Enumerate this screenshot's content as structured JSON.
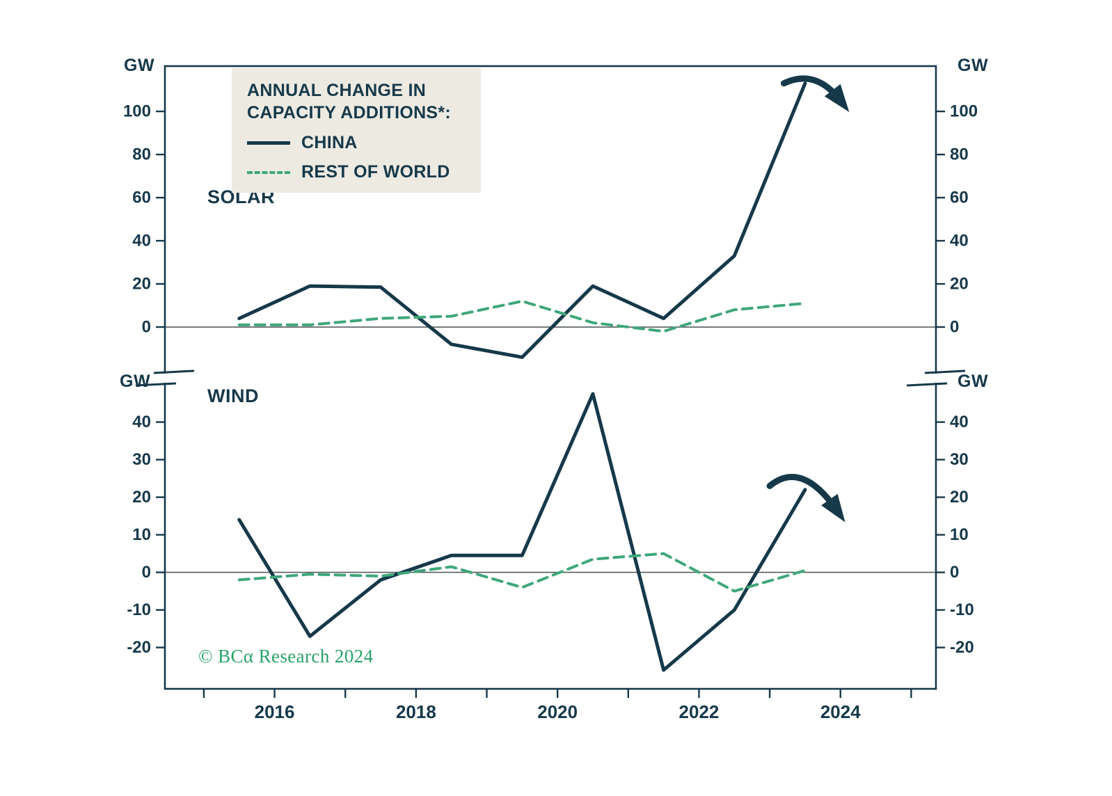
{
  "colors": {
    "background": "#ffffff",
    "ink": "#16394a",
    "china_line": "#16394a",
    "rest_of_world_line": "#3fa77a",
    "legend_background": "#edeae2",
    "copyright_green": "#2aa268",
    "zero_line": "#565b5e"
  },
  "legend": {
    "title_line1": "ANNUAL CHANGE IN",
    "title_line2": "CAPACITY ADDITIONS*:"
  },
  "axis": {
    "unit_label": "GW",
    "minor_tick_years": [
      2015,
      2016,
      2017,
      2018,
      2019,
      2020,
      2021,
      2022,
      2023,
      2024,
      2025
    ],
    "x_ticks": [
      {
        "year": 2016,
        "label": "2016"
      },
      {
        "year": 2018,
        "label": "2018"
      },
      {
        "year": 2020,
        "label": "2020"
      },
      {
        "year": 2022,
        "label": "2022"
      },
      {
        "year": 2024,
        "label": "2024"
      }
    ]
  },
  "footer": {
    "copyright": "© BCα Research 2024"
  },
  "chart_data": [
    {
      "type": "line",
      "title": "SOLAR",
      "xlabel": "",
      "ylabel": "GW",
      "xlim": [
        2014.45,
        2025.35
      ],
      "ylim": [
        -20,
        121
      ],
      "yticks": [
        0,
        20,
        40,
        60,
        80,
        100
      ],
      "x": [
        2015.5,
        2016.5,
        2017.5,
        2018.5,
        2019.5,
        2020.5,
        2021.5,
        2022.5,
        2023.5
      ],
      "series": [
        {
          "name": "CHINA",
          "style": "solid",
          "color": "#16394a",
          "values": [
            4,
            19,
            18.5,
            -8,
            -14,
            19,
            4,
            33,
            113
          ]
        },
        {
          "name": "REST OF WORLD",
          "style": "dashed",
          "color": "#3fa77a",
          "values": [
            1,
            1,
            4,
            5,
            12,
            2,
            -2,
            8,
            11
          ]
        }
      ],
      "annotations": [
        {
          "type": "arrow",
          "from": [
            2023.2,
            113
          ],
          "ctrl": [
            2023.65,
            120
          ],
          "to": [
            2024.0,
            105
          ]
        }
      ]
    },
    {
      "type": "line",
      "title": "WIND",
      "xlabel": "",
      "ylabel": "GW",
      "xlim": [
        2014.45,
        2025.35
      ],
      "ylim": [
        -31,
        49
      ],
      "yticks": [
        -20,
        -10,
        0,
        10,
        20,
        30,
        40
      ],
      "x": [
        2015.5,
        2016.5,
        2017.5,
        2018.5,
        2019.5,
        2020.5,
        2021.5,
        2022.5,
        2023.5
      ],
      "series": [
        {
          "name": "CHINA",
          "style": "solid",
          "color": "#16394a",
          "values": [
            14,
            -17,
            -2,
            4.5,
            4.5,
            47.5,
            -26,
            -10,
            22
          ]
        },
        {
          "name": "REST OF WORLD",
          "style": "dashed",
          "color": "#3fa77a",
          "values": [
            -2,
            -0.5,
            -1,
            1.5,
            -4,
            3.5,
            5,
            -5,
            0.5
          ]
        }
      ],
      "annotations": [
        {
          "type": "arrow",
          "from": [
            2023.0,
            23
          ],
          "ctrl": [
            2023.45,
            30
          ],
          "to": [
            2023.95,
            16.5
          ]
        }
      ]
    }
  ]
}
